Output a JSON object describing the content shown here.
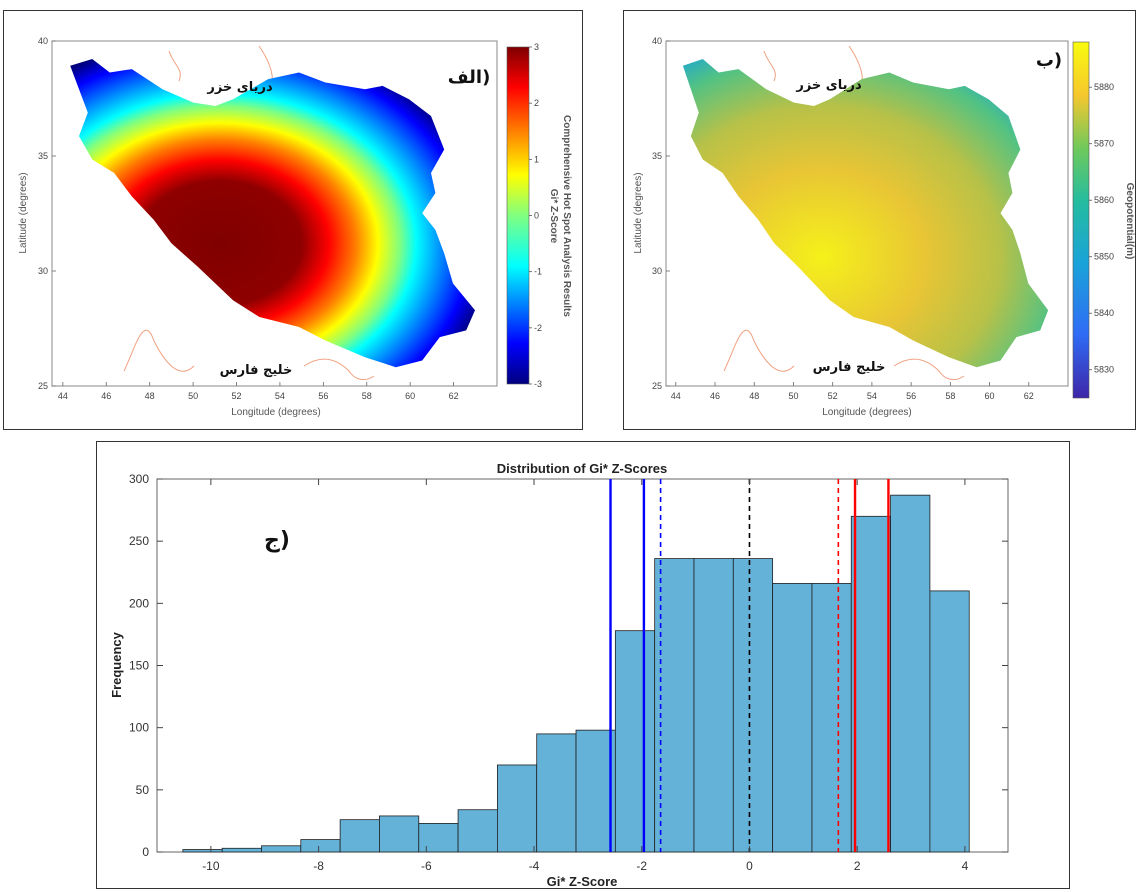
{
  "panel_a": {
    "letter": "الف)",
    "sea_north": "دریای خزر",
    "sea_south": "خلیج فارس",
    "xlabel": "Longitude (degrees)",
    "ylabel": "Latitude (degrees)",
    "colorbar_label_1": "Comprehensive Hot Spot Analysis Results",
    "colorbar_label_2": "Gi* Z-Score",
    "colorbar_ticks": [
      "3",
      "2",
      "1",
      "0",
      "-1",
      "-2",
      "-3"
    ],
    "colorbar_range": [
      -3,
      3
    ],
    "colormap": [
      "#00007f",
      "#0000ff",
      "#007fff",
      "#00ffff",
      "#7fff7f",
      "#ffff00",
      "#ff7f00",
      "#ff0000",
      "#7f0000"
    ]
  },
  "panel_b": {
    "letter": "ب)",
    "sea_north": "دریای خزر",
    "sea_south": "خلیج فارس",
    "xlabel": "Longitude (degrees)",
    "ylabel": "Latitude (degrees)",
    "colorbar_label": "Geopotential(m)",
    "colorbar_ticks": [
      "5880",
      "5870",
      "5860",
      "5850",
      "5840",
      "5830"
    ],
    "colorbar_range": [
      5825,
      5888
    ],
    "colormap": [
      "#3e26a8",
      "#2f6cf5",
      "#1aa3d8",
      "#23bca0",
      "#6fc95c",
      "#c4bc39",
      "#f5c72e",
      "#f9fb0e"
    ]
  },
  "map_axes": {
    "x_ticks": [
      "44",
      "46",
      "48",
      "50",
      "52",
      "54",
      "56",
      "58",
      "60",
      "62"
    ],
    "y_ticks": [
      "40",
      "35",
      "30",
      "25"
    ],
    "x_range": [
      43.5,
      64
    ],
    "y_range": [
      25,
      40
    ]
  },
  "panel_c_letter": "ج)",
  "chart_data": {
    "type": "bar",
    "title": "Distribution of Gi* Z-Scores",
    "xlabel": "Gi* Z-Score",
    "ylabel": "Frequency",
    "xlim": [
      -11,
      4.8
    ],
    "ylim": [
      0,
      300
    ],
    "x_ticks": [
      "-10",
      "-8",
      "-6",
      "-4",
      "-2",
      "0",
      "2",
      "4"
    ],
    "y_ticks": [
      "0",
      "50",
      "100",
      "150",
      "200",
      "250",
      "300"
    ],
    "bin_edges": [
      -10.52,
      -9.79,
      -9.06,
      -8.33,
      -7.6,
      -6.87,
      -6.14,
      -5.41,
      -4.68,
      -3.95,
      -3.22,
      -2.49,
      -1.76,
      -1.03,
      -0.3,
      0.43,
      1.16,
      1.89,
      2.62,
      3.35,
      4.08
    ],
    "values": [
      2,
      3,
      5,
      10,
      26,
      29,
      23,
      34,
      70,
      95,
      98,
      178,
      236,
      236,
      236,
      216,
      216,
      270,
      287,
      210
    ],
    "bar_color": "#65b2d9",
    "reference_lines": [
      {
        "x": -2.58,
        "color": "#0000ff",
        "style": "solid"
      },
      {
        "x": -1.96,
        "color": "#0000ff",
        "style": "solid"
      },
      {
        "x": -1.65,
        "color": "#0000ff",
        "style": "dashed"
      },
      {
        "x": 0,
        "color": "#000000",
        "style": "dashed"
      },
      {
        "x": 1.65,
        "color": "#ff0000",
        "style": "dashed"
      },
      {
        "x": 1.96,
        "color": "#ff0000",
        "style": "solid"
      },
      {
        "x": 2.58,
        "color": "#ff0000",
        "style": "solid"
      }
    ]
  }
}
